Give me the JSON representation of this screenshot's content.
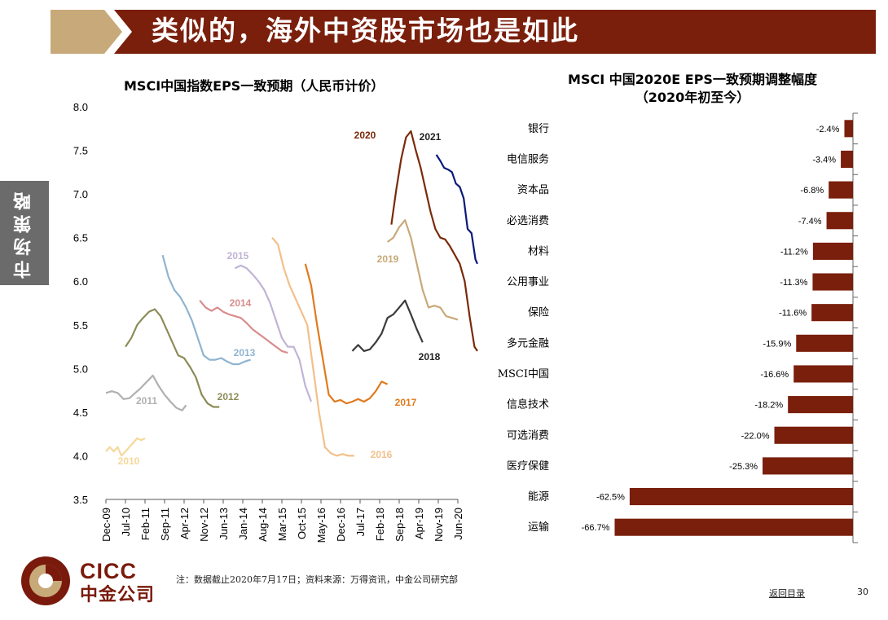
{
  "header": {
    "title": "类似的，海外中资股市场也是如此",
    "tan_color": "#c8a97a",
    "bar_color": "#7a1f0c"
  },
  "side_tab": {
    "label": "市场策略"
  },
  "chart_data": [
    {
      "type": "line",
      "title": "MSCI中国指数EPS一致预期（人民币计价）",
      "ylim": [
        3.5,
        8.0
      ],
      "yticks": [
        "8.0",
        "7.5",
        "7.0",
        "6.5",
        "6.0",
        "5.5",
        "5.0",
        "4.5",
        "4.0",
        "3.5"
      ],
      "xticks": [
        "Dec-09",
        "Jul-10",
        "Feb-11",
        "Sep-11",
        "Apr-12",
        "Nov-12",
        "Jun-13",
        "Jan-14",
        "Aug-14",
        "Mar-15",
        "Oct-15",
        "May-16",
        "Dec-16",
        "Jul-17",
        "Feb-18",
        "Sep-18",
        "Apr-19",
        "Nov-19",
        "Jun-20"
      ],
      "series": [
        {
          "name": "2010",
          "color": "#f5d89a",
          "x": [
            0,
            0.2,
            0.4,
            0.6,
            0.8,
            1.0,
            1.2,
            1.4,
            1.6,
            1.8,
            2.0
          ],
          "values": [
            4.05,
            4.1,
            4.05,
            4.1,
            4.0,
            4.05,
            4.1,
            4.15,
            4.2,
            4.18,
            4.2
          ]
        },
        {
          "name": "2011",
          "color": "#b0b0b0",
          "x": [
            0,
            0.3,
            0.6,
            0.9,
            1.2,
            1.5,
            1.8,
            2.1,
            2.4,
            2.7,
            3.0,
            3.3,
            3.6,
            3.9,
            4.1
          ],
          "values": [
            4.72,
            4.74,
            4.72,
            4.65,
            4.66,
            4.72,
            4.78,
            4.85,
            4.92,
            4.8,
            4.7,
            4.62,
            4.55,
            4.52,
            4.58
          ]
        },
        {
          "name": "2012",
          "color": "#8c8c58",
          "x": [
            1.0,
            1.3,
            1.6,
            1.9,
            2.2,
            2.5,
            2.8,
            3.1,
            3.4,
            3.7,
            4.0,
            4.3,
            4.6,
            4.9,
            5.2,
            5.5,
            5.8
          ],
          "values": [
            5.25,
            5.35,
            5.5,
            5.58,
            5.65,
            5.68,
            5.6,
            5.45,
            5.3,
            5.15,
            5.12,
            5.02,
            4.9,
            4.7,
            4.6,
            4.56,
            4.56
          ]
        },
        {
          "name": "2013",
          "color": "#8fb4d0",
          "x": [
            2.9,
            3.2,
            3.5,
            3.8,
            4.1,
            4.4,
            4.7,
            5.0,
            5.3,
            5.6,
            5.9,
            6.2,
            6.5,
            6.8,
            7.1,
            7.4
          ],
          "values": [
            6.3,
            6.05,
            5.9,
            5.82,
            5.7,
            5.55,
            5.35,
            5.15,
            5.1,
            5.1,
            5.12,
            5.08,
            5.05,
            5.05,
            5.08,
            5.1
          ]
        },
        {
          "name": "2014",
          "color": "#d98c8c",
          "x": [
            4.8,
            5.1,
            5.4,
            5.7,
            6.0,
            6.3,
            6.6,
            6.9,
            7.2,
            7.5,
            7.8,
            8.1,
            8.4,
            8.7,
            9.0,
            9.3
          ],
          "values": [
            5.78,
            5.7,
            5.66,
            5.7,
            5.65,
            5.62,
            5.6,
            5.58,
            5.52,
            5.45,
            5.4,
            5.35,
            5.3,
            5.25,
            5.2,
            5.18
          ]
        },
        {
          "name": "2015",
          "color": "#c0b4d4",
          "x": [
            6.6,
            6.9,
            7.2,
            7.5,
            7.8,
            8.1,
            8.4,
            8.7,
            9.0,
            9.3,
            9.6,
            9.9,
            10.2,
            10.5
          ],
          "values": [
            6.15,
            6.18,
            6.15,
            6.08,
            6.0,
            5.9,
            5.75,
            5.55,
            5.35,
            5.25,
            5.25,
            5.1,
            4.8,
            4.62
          ]
        },
        {
          "name": "2016",
          "color": "#f2c08a",
          "x": [
            8.5,
            8.8,
            9.1,
            9.4,
            9.7,
            10.0,
            10.3,
            10.6,
            10.9,
            11.2,
            11.5,
            11.8,
            12.1,
            12.4,
            12.7
          ],
          "values": [
            6.5,
            6.42,
            6.15,
            5.95,
            5.8,
            5.65,
            5.5,
            5.0,
            4.5,
            4.1,
            4.03,
            4.0,
            4.02,
            4.0,
            4.0
          ]
        },
        {
          "name": "2017",
          "color": "#e07a1e",
          "x": [
            10.2,
            10.5,
            10.8,
            11.1,
            11.4,
            11.7,
            12.0,
            12.3,
            12.6,
            12.9,
            13.2,
            13.5,
            13.8,
            14.1,
            14.4
          ],
          "values": [
            6.2,
            5.95,
            5.5,
            5.1,
            4.7,
            4.62,
            4.64,
            4.6,
            4.62,
            4.65,
            4.62,
            4.66,
            4.74,
            4.85,
            4.82
          ]
        },
        {
          "name": "2018",
          "color": "#3a3a3a",
          "x": [
            12.6,
            12.9,
            13.2,
            13.5,
            13.8,
            14.1,
            14.4,
            14.7,
            15.0,
            15.3,
            15.6,
            15.9,
            16.2
          ],
          "values": [
            5.2,
            5.27,
            5.2,
            5.22,
            5.3,
            5.4,
            5.58,
            5.62,
            5.7,
            5.78,
            5.62,
            5.45,
            5.3
          ]
        },
        {
          "name": "2019",
          "color": "#c9a97a",
          "x": [
            14.4,
            14.7,
            15.0,
            15.3,
            15.6,
            15.9,
            16.2,
            16.5,
            16.8,
            17.1,
            17.4,
            17.7,
            18.0
          ],
          "values": [
            6.45,
            6.5,
            6.62,
            6.7,
            6.5,
            6.2,
            5.9,
            5.7,
            5.72,
            5.7,
            5.6,
            5.58,
            5.56
          ]
        },
        {
          "name": "2020",
          "color": "#7a2a08",
          "x": [
            14.6,
            14.85,
            15.1,
            15.35,
            15.6,
            15.85,
            16.1,
            16.35,
            16.6,
            16.85,
            17.1,
            17.35,
            17.6,
            17.85,
            18.1,
            18.35,
            18.6,
            18.85,
            19.0
          ],
          "values": [
            6.65,
            7.05,
            7.4,
            7.65,
            7.72,
            7.5,
            7.3,
            7.05,
            6.8,
            6.6,
            6.5,
            6.48,
            6.4,
            6.3,
            6.2,
            6.0,
            5.6,
            5.25,
            5.2
          ]
        },
        {
          "name": "2021",
          "color": "#0a1a7a",
          "x": [
            16.9,
            17.1,
            17.3,
            17.5,
            17.7,
            17.9,
            18.1,
            18.3,
            18.5,
            18.7,
            18.9,
            19.0
          ],
          "values": [
            7.45,
            7.38,
            7.3,
            7.28,
            7.25,
            7.12,
            7.08,
            6.95,
            6.6,
            6.55,
            6.25,
            6.2
          ]
        }
      ]
    },
    {
      "type": "bar",
      "orientation": "horizontal",
      "title": "MSCI 中国2020E EPS一致预期调整幅度",
      "subtitle": "（2020年初至今）",
      "bar_color": "#7a1f0c",
      "categories": [
        "银行",
        "电信服务",
        "资本品",
        "必选消费",
        "材料",
        "公用事业",
        "保险",
        "多元金融",
        "MSCI中国",
        "信息技术",
        "可选消费",
        "医疗保健",
        "能源",
        "运输"
      ],
      "values": [
        -2.4,
        -3.4,
        -6.8,
        -7.4,
        -11.2,
        -11.3,
        -11.6,
        -15.9,
        -16.6,
        -18.2,
        -22.0,
        -25.3,
        -62.5,
        -66.7
      ],
      "labels": [
        "-2.4%",
        "-3.4%",
        "-6.8%",
        "-7.4%",
        "-11.2%",
        "-11.3%",
        "-11.6%",
        "-15.9%",
        "-16.6%",
        "-18.2%",
        "-22.0%",
        "-25.3%",
        "-62.5%",
        "-66.7%"
      ]
    }
  ],
  "footer": {
    "note": "注：数据截止2020年7月17日；资料来源：万得资讯，中金公司研究部",
    "back_link": "返回目录",
    "page_number": "30",
    "logo_en": "CICC",
    "logo_cn": "中金公司"
  }
}
